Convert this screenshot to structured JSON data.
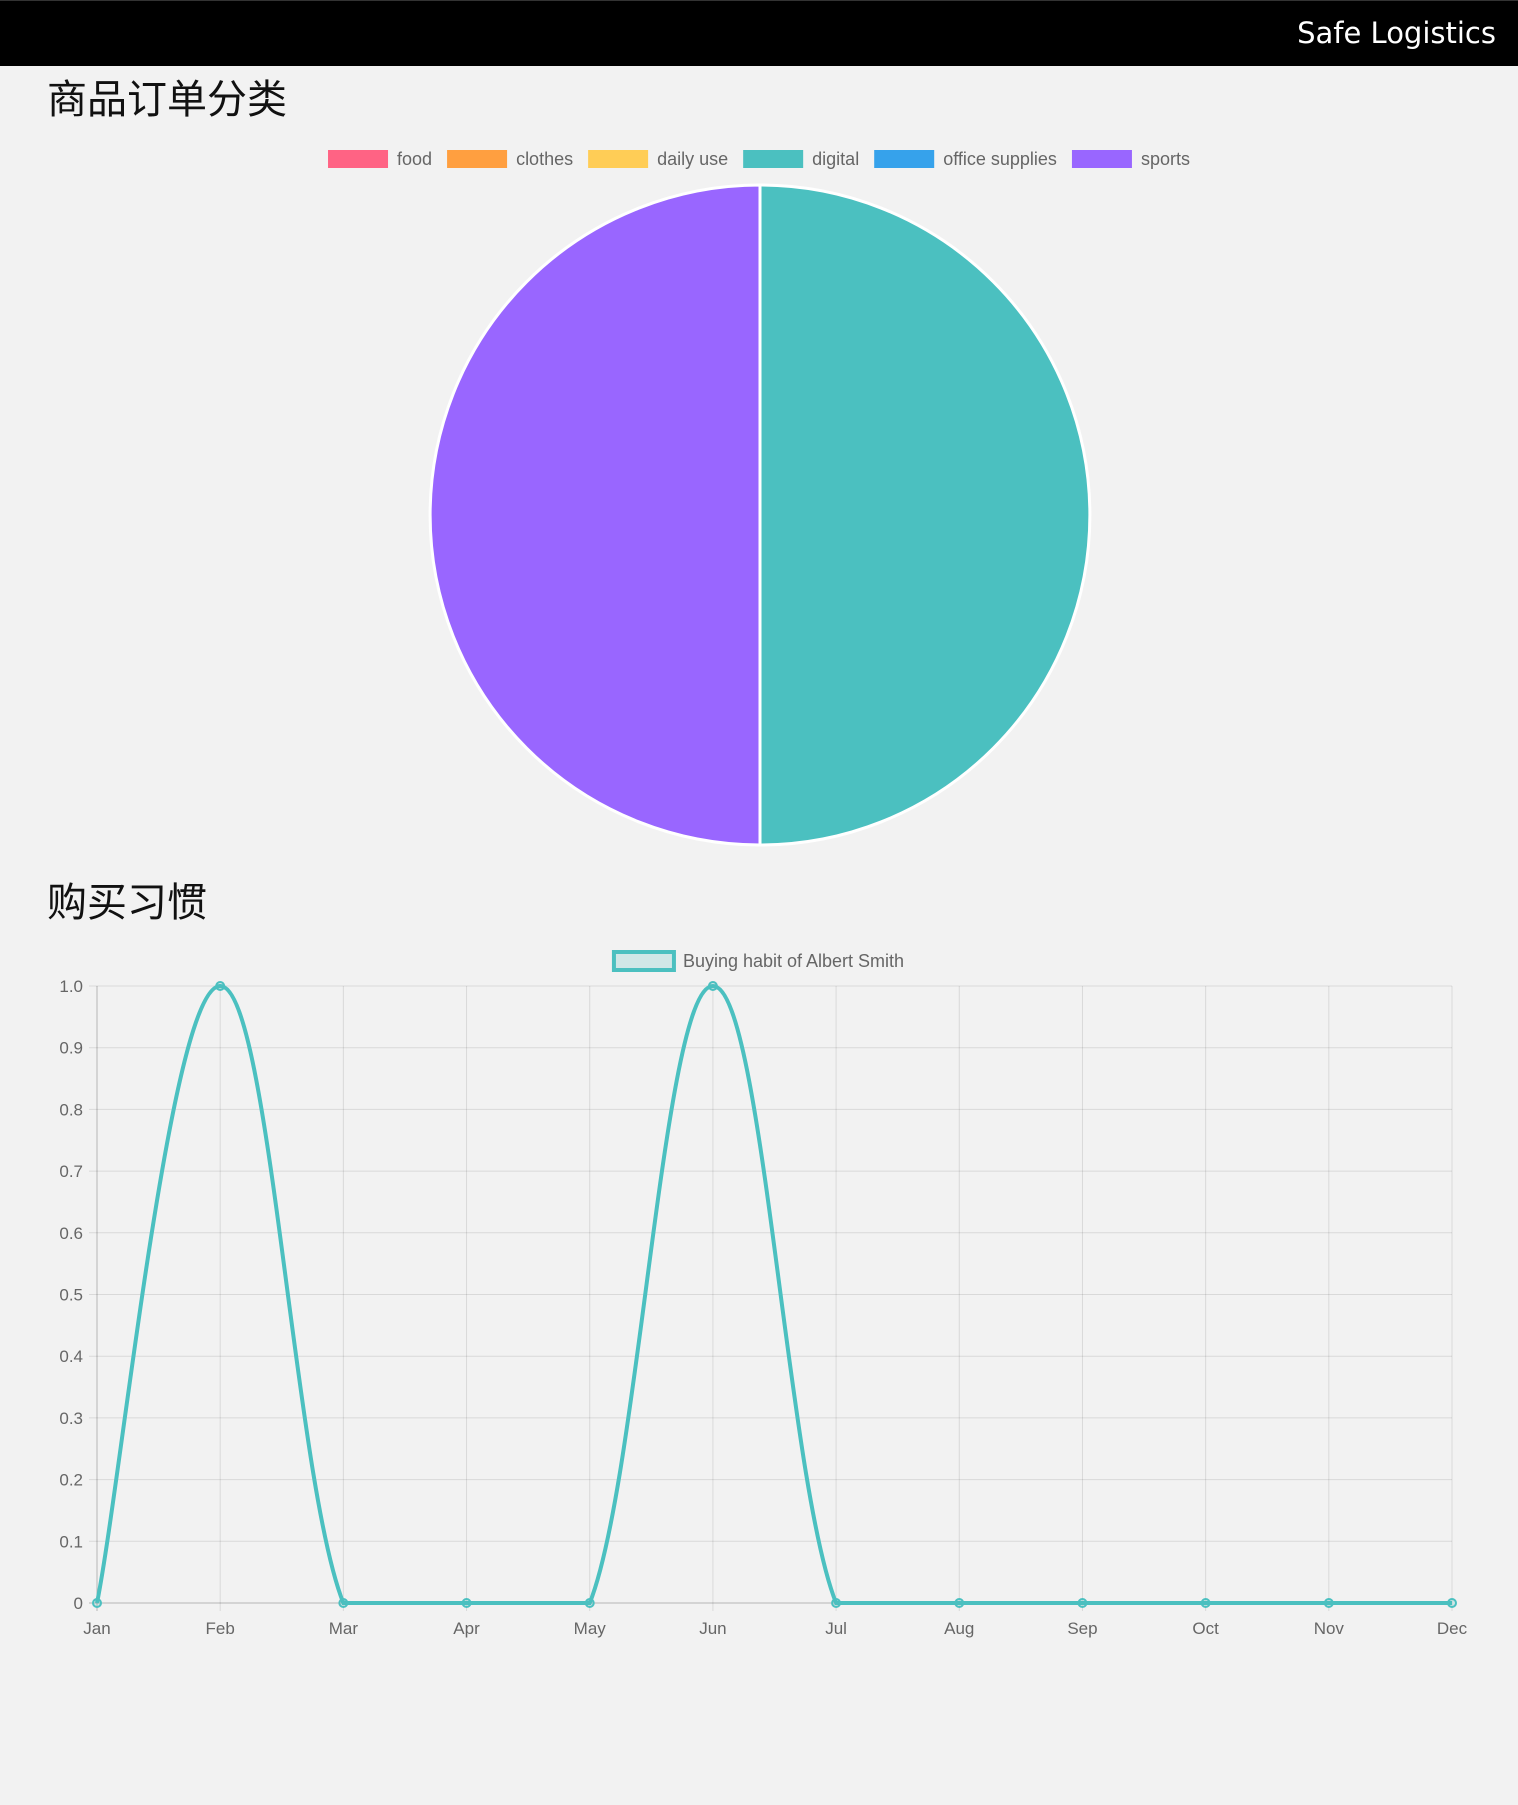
{
  "header": {
    "brand": "Safe Logistics"
  },
  "sections": {
    "pie_title": "商品订单分类",
    "line_title": "购买习惯"
  },
  "chart_data": [
    {
      "type": "pie",
      "title": "",
      "legend_position": "top",
      "categories": [
        "food",
        "clothes",
        "daily use",
        "digital",
        "office supplies",
        "sports"
      ],
      "values": [
        0,
        0,
        0,
        1,
        0,
        1
      ],
      "colors": [
        "#ff6384",
        "#ff9f40",
        "#ffcd56",
        "#4bc0c0",
        "#36a2eb",
        "#9966ff"
      ]
    },
    {
      "type": "line",
      "title": "",
      "legend_position": "top",
      "categories": [
        "Jan",
        "Feb",
        "Mar",
        "Apr",
        "May",
        "Jun",
        "Jul",
        "Aug",
        "Sep",
        "Oct",
        "Nov",
        "Dec"
      ],
      "series": [
        {
          "name": "Buying habit of Albert Smith",
          "values": [
            0,
            1,
            0,
            0,
            0,
            1,
            0,
            0,
            0,
            0,
            0,
            0
          ],
          "color": "#4bc0c0"
        }
      ],
      "ylim": [
        0,
        1.0
      ],
      "yticks": [
        "0",
        "0.1",
        "0.2",
        "0.3",
        "0.4",
        "0.5",
        "0.6",
        "0.7",
        "0.8",
        "0.9",
        "1.0"
      ],
      "grid": true
    }
  ]
}
